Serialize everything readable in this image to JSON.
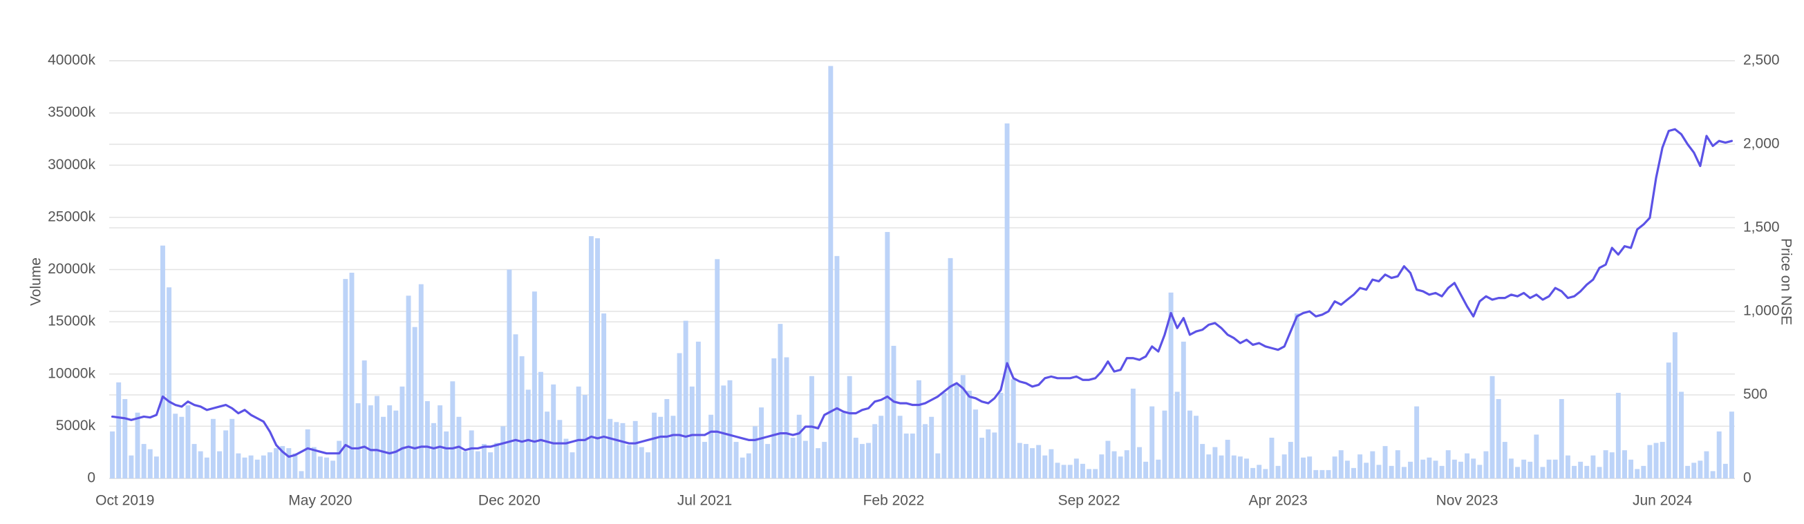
{
  "chart_data": {
    "type": "bar",
    "ylabel": "Volume",
    "y2label": "Price on NSE",
    "ylim": [
      0,
      40000
    ],
    "yticks": [
      0,
      {
        "value": 5000,
        "label": "5000k"
      },
      {
        "value": 10000,
        "label": "10000k"
      },
      {
        "value": 15000,
        "label": "15000k"
      },
      {
        "value": 20000,
        "label": "20000k"
      },
      {
        "value": 25000,
        "label": "25000k"
      },
      {
        "value": 30000,
        "label": "30000k"
      },
      {
        "value": 35000,
        "label": "35000k"
      },
      {
        "value": 40000,
        "label": "40000k"
      }
    ],
    "y2lim": [
      0,
      2500
    ],
    "y2ticks": [
      0,
      500,
      {
        "value": 1000,
        "label": "1,000"
      },
      {
        "value": 1500,
        "label": "1,500"
      },
      {
        "value": 2000,
        "label": "2,000"
      },
      {
        "value": 2500,
        "label": "2,500"
      }
    ],
    "grid": true,
    "categories": [
      null,
      null,
      "Oct 2019",
      null,
      null,
      null,
      null,
      null,
      null,
      null,
      null,
      null,
      null,
      null,
      null,
      null,
      null,
      null,
      null,
      null,
      null,
      null,
      null,
      null,
      null,
      null,
      null,
      null,
      null,
      null,
      null,
      null,
      null,
      "May 2020",
      null,
      null,
      null,
      null,
      null,
      null,
      null,
      null,
      null,
      null,
      null,
      null,
      null,
      null,
      null,
      null,
      null,
      null,
      null,
      null,
      null,
      null,
      null,
      null,
      null,
      null,
      null,
      null,
      null,
      "Dec 2020",
      null,
      null,
      null,
      null,
      null,
      null,
      null,
      null,
      null,
      null,
      null,
      null,
      null,
      null,
      null,
      null,
      null,
      null,
      null,
      null,
      null,
      null,
      null,
      null,
      null,
      null,
      null,
      null,
      null,
      null,
      "Jul 2021",
      null,
      null,
      null,
      null,
      null,
      null,
      null,
      null,
      null,
      null,
      null,
      null,
      null,
      null,
      null,
      null,
      null,
      null,
      null,
      null,
      null,
      null,
      null,
      null,
      null,
      null,
      null,
      null,
      null,
      "Feb 2022",
      null,
      null,
      null,
      null,
      null,
      null,
      null,
      null,
      null,
      null,
      null,
      null,
      null,
      null,
      null,
      null,
      null,
      null,
      null,
      null,
      null,
      null,
      null,
      null,
      null,
      null,
      null,
      null,
      null,
      null,
      "Sep 2022",
      null,
      null,
      null,
      null,
      null,
      null,
      null,
      null,
      null,
      null,
      null,
      null,
      null,
      null,
      null,
      null,
      null,
      null,
      null,
      null,
      null,
      null,
      null,
      null,
      null,
      null,
      null,
      null,
      null,
      "Apr 2023",
      null,
      null,
      null,
      null,
      null,
      null,
      null,
      null,
      null,
      null,
      null,
      null,
      null,
      null,
      null,
      null,
      null,
      null,
      null,
      null,
      null,
      null,
      null,
      null,
      null,
      null,
      null,
      null,
      null,
      "Nov 2023",
      null,
      null,
      null,
      null,
      null,
      null,
      null,
      null,
      null,
      null,
      null,
      null,
      null,
      null,
      null,
      null,
      null,
      null,
      null,
      null,
      null,
      null,
      null,
      null,
      null,
      null,
      null,
      null,
      null,
      null,
      "Jun 2024",
      null,
      null,
      null,
      null,
      null,
      null,
      null,
      null,
      null,
      null,
      null
    ],
    "series": [
      {
        "type": "bar",
        "color": "#bcd3f8",
        "values": [
          4500,
          9200,
          7600,
          2200,
          6300,
          3300,
          2800,
          2100,
          22300,
          18300,
          6200,
          5900,
          7000,
          3300,
          2600,
          2000,
          5700,
          2600,
          4600,
          5700,
          2400,
          2000,
          2200,
          1800,
          2200,
          2500,
          2900,
          3100,
          2900,
          2400,
          700,
          4700,
          3000,
          2100,
          2000,
          1700,
          3600,
          19100,
          19700,
          7200,
          11300,
          7000,
          7900,
          5900,
          7000,
          6500,
          8800,
          17500,
          14500,
          18600,
          7400,
          5300,
          7000,
          4500,
          9300,
          5900,
          2600,
          4600,
          2600,
          3300,
          2500,
          3400,
          5000,
          20000,
          13800,
          11700,
          8500,
          17900,
          10200,
          6400,
          9000,
          5600,
          3800,
          2500,
          8800,
          8000,
          23200,
          23000,
          15800,
          5700,
          5400,
          5300,
          3200,
          5500,
          3000,
          2500,
          6300,
          5900,
          7600,
          6000,
          12000,
          15100,
          8800,
          13100,
          3500,
          6100,
          21000,
          8900,
          9400,
          3500,
          2000,
          2400,
          5000,
          6800,
          3300,
          11500,
          14800,
          11600,
          3900,
          6100,
          3600,
          9800,
          2900,
          3500,
          39500,
          21300,
          6300,
          9800,
          3900,
          3300,
          3400,
          5200,
          6000,
          23600,
          12700,
          6000,
          4300,
          4300,
          9400,
          5200,
          5900,
          2400,
          8200,
          21100,
          9000,
          9900,
          8400,
          6600,
          3900,
          4700,
          4400,
          8200,
          34000,
          9500,
          3400,
          3300,
          2900,
          3200,
          2200,
          2800,
          1500,
          1300,
          1300,
          1900,
          1400,
          900,
          900,
          2300,
          3600,
          2600,
          2100,
          2700,
          8600,
          3000,
          1600,
          6900,
          1800,
          6500,
          17800,
          8300,
          13100,
          6500,
          6000,
          3300,
          2300,
          3000,
          2200,
          3700,
          2200,
          2100,
          1900,
          1000,
          1300,
          900,
          3900,
          1200,
          2300,
          3500,
          15800,
          2000,
          2100,
          800,
          800,
          800,
          2100,
          2700,
          1700,
          1000,
          2300,
          1500,
          2600,
          1300,
          3100,
          1200,
          2700,
          1100,
          1600,
          6900,
          1800,
          2000,
          1700,
          1200,
          2700,
          1800,
          1600,
          2400,
          1900,
          1300,
          2600,
          9800,
          7600,
          3500,
          1900,
          1100,
          1800,
          1600,
          4200,
          1100,
          1800,
          1800,
          7600,
          2200,
          1200,
          1600,
          1200,
          2200,
          1100,
          2700,
          2500,
          8200,
          2700,
          1800,
          900,
          1200,
          3200,
          3400,
          3500,
          11100,
          14000,
          8300,
          1200,
          1500,
          1700,
          2600,
          700,
          4500,
          1400,
          6400
        ]
      },
      {
        "type": "line",
        "axis": "y2",
        "color": "#5b52e6",
        "values": [
          370,
          365,
          360,
          350,
          360,
          370,
          365,
          380,
          490,
          460,
          440,
          430,
          460,
          440,
          430,
          410,
          420,
          430,
          440,
          420,
          390,
          410,
          380,
          360,
          340,
          280,
          200,
          160,
          130,
          140,
          160,
          180,
          170,
          160,
          150,
          150,
          150,
          200,
          180,
          180,
          190,
          170,
          170,
          160,
          150,
          160,
          180,
          190,
          180,
          190,
          190,
          180,
          190,
          180,
          180,
          190,
          170,
          180,
          180,
          190,
          190,
          200,
          210,
          220,
          230,
          220,
          230,
          220,
          230,
          220,
          210,
          210,
          210,
          220,
          230,
          230,
          250,
          240,
          250,
          240,
          230,
          220,
          210,
          210,
          220,
          230,
          240,
          250,
          250,
          260,
          260,
          250,
          260,
          260,
          260,
          280,
          280,
          270,
          260,
          250,
          240,
          230,
          230,
          240,
          250,
          260,
          270,
          270,
          260,
          270,
          310,
          310,
          300,
          380,
          400,
          420,
          400,
          390,
          390,
          410,
          420,
          460,
          470,
          490,
          460,
          450,
          450,
          440,
          440,
          450,
          470,
          490,
          520,
          550,
          570,
          540,
          490,
          480,
          460,
          450,
          480,
          530,
          690,
          600,
          580,
          570,
          550,
          560,
          600,
          610,
          600,
          600,
          600,
          610,
          590,
          590,
          600,
          640,
          700,
          640,
          650,
          720,
          720,
          710,
          730,
          790,
          760,
          860,
          990,
          900,
          960,
          860,
          880,
          890,
          920,
          930,
          900,
          860,
          840,
          810,
          830,
          800,
          810,
          790,
          780,
          770,
          790,
          880,
          970,
          990,
          1000,
          970,
          980,
          1000,
          1060,
          1040,
          1070,
          1100,
          1140,
          1130,
          1190,
          1180,
          1220,
          1200,
          1210,
          1270,
          1230,
          1130,
          1120,
          1100,
          1110,
          1090,
          1140,
          1170,
          1100,
          1030,
          970,
          1060,
          1090,
          1070,
          1080,
          1080,
          1100,
          1090,
          1110,
          1080,
          1100,
          1070,
          1090,
          1140,
          1120,
          1080,
          1090,
          1120,
          1160,
          1190,
          1260,
          1280,
          1380,
          1340,
          1390,
          1380,
          1490,
          1520,
          1560,
          1800,
          1980,
          2080,
          2090,
          2060,
          2000,
          1950,
          1870,
          2050,
          1990,
          2020,
          2010,
          2020
        ]
      }
    ]
  }
}
